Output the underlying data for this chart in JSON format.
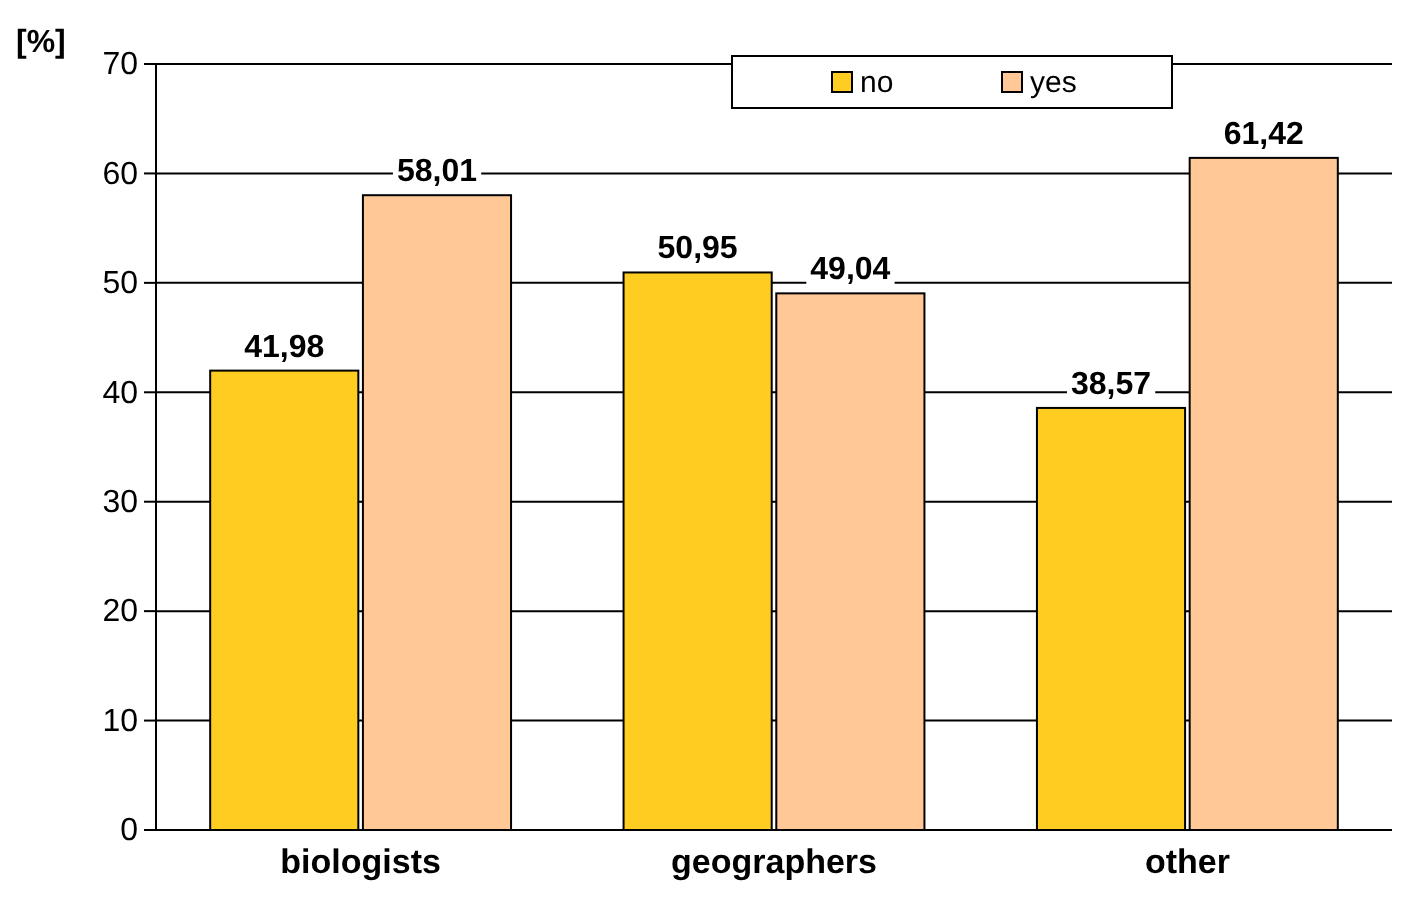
{
  "chart_data": {
    "type": "bar",
    "ylabel": "[%]",
    "categories": [
      "biologists",
      "geographers",
      "other"
    ],
    "series": [
      {
        "name": "no",
        "color": "#ffcc22",
        "values": [
          41.98,
          50.95,
          38.57
        ],
        "value_labels": [
          "41,98",
          "50,95",
          "38,57"
        ]
      },
      {
        "name": "yes",
        "color": "#ffc896",
        "values": [
          58.01,
          49.04,
          61.42
        ],
        "value_labels": [
          "58,01",
          "49,04",
          "61,42"
        ]
      }
    ],
    "ylim": [
      0,
      70
    ],
    "yticks": [
      0,
      10,
      20,
      30,
      40,
      50,
      60,
      70
    ],
    "grid": "y",
    "legend": "top right"
  }
}
